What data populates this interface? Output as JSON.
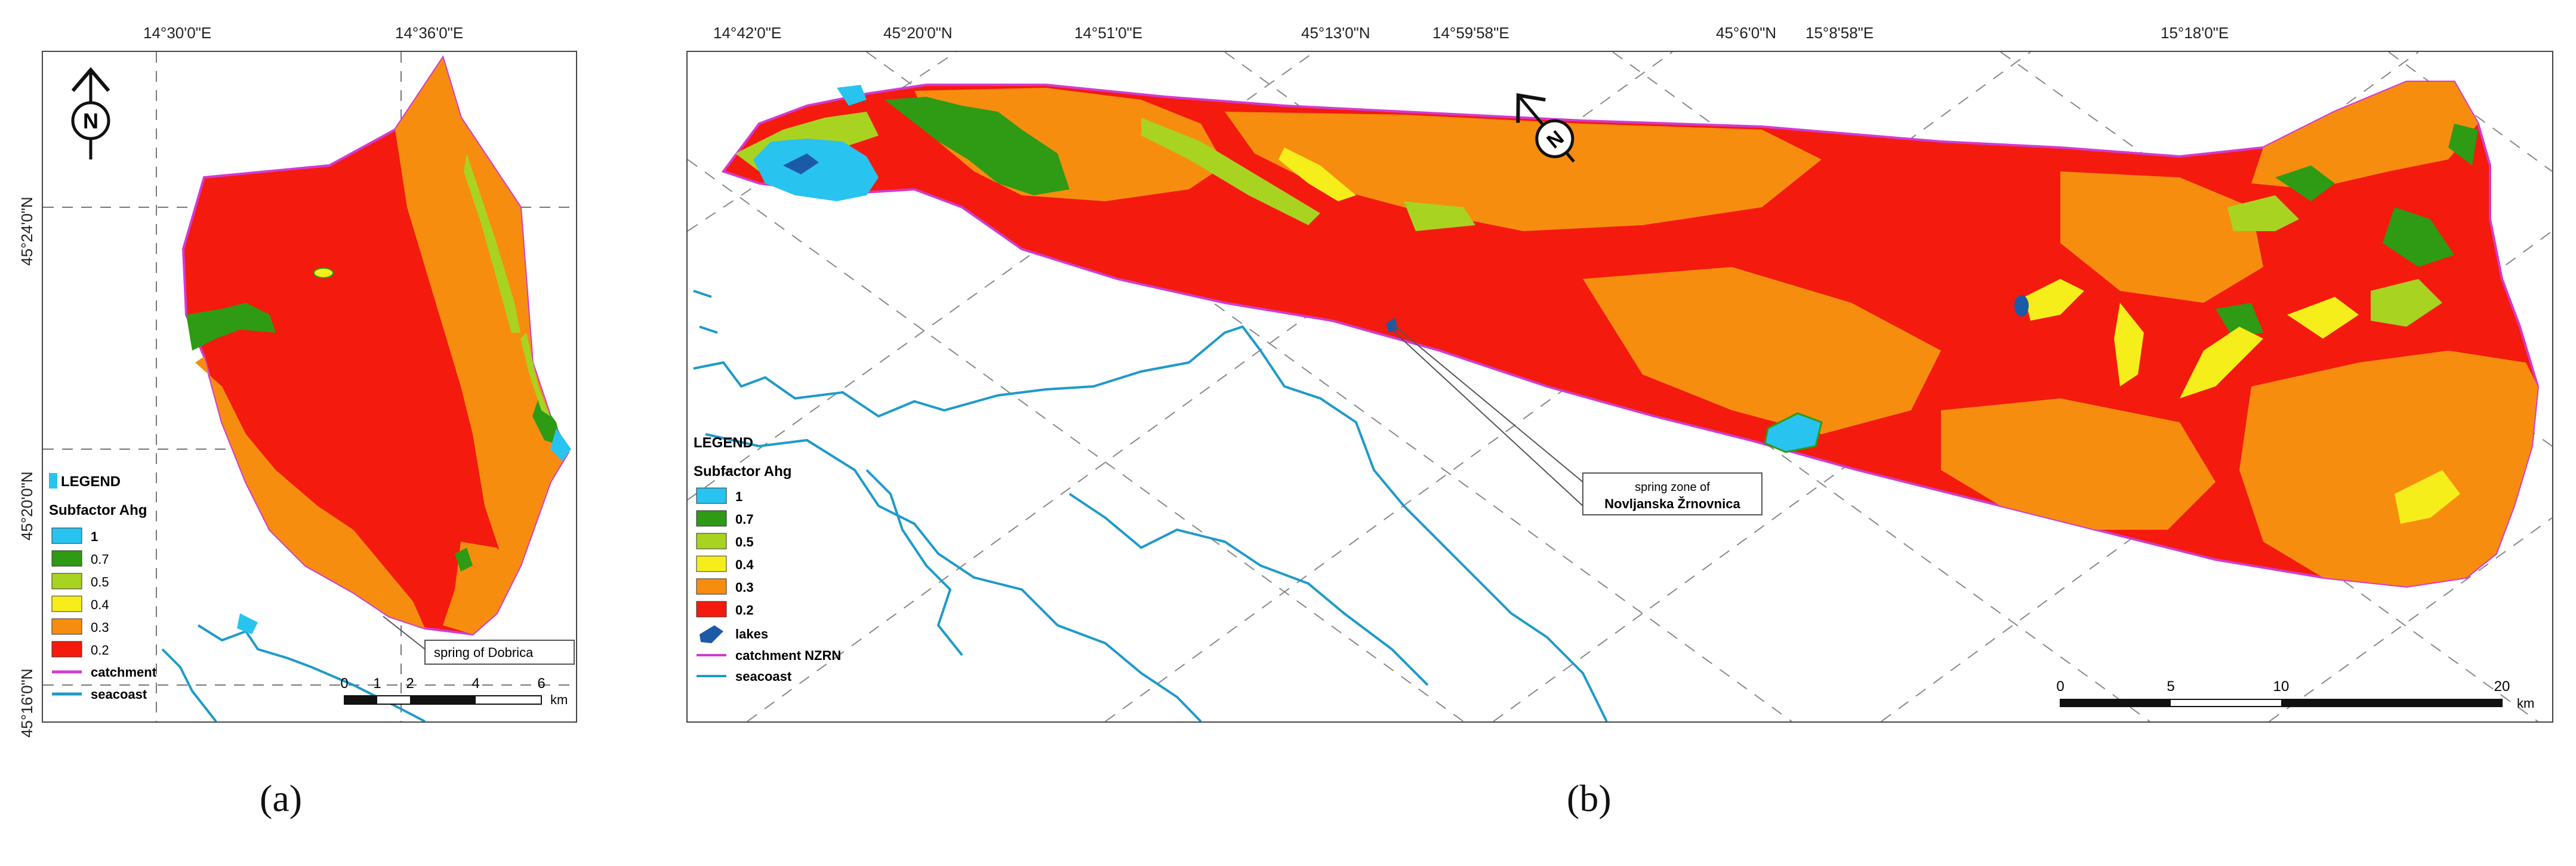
{
  "colors": {
    "c1": "#29c3ef",
    "c07": "#2f9a14",
    "c05": "#a9d321",
    "c04": "#f6ee1a",
    "c03": "#f78d0f",
    "c02": "#f41a0d",
    "catchment": "#d33ad0",
    "seacoast": "#1f9ac9",
    "lakes": "#1c5aa8"
  },
  "panel_a": {
    "caption": "(a)",
    "top_coords": [
      "14°30'0\"E",
      "14°36'0\"E"
    ],
    "left_coords": [
      "45°24'0\"N",
      "45°20'0\"N",
      "45°16'0\"N"
    ],
    "north_arrow": "N",
    "legend": {
      "title": "LEGEND",
      "subtitle": "Subfactor Ahg",
      "items": [
        {
          "label": "1",
          "color_key": "c1"
        },
        {
          "label": "0.7",
          "color_key": "c07"
        },
        {
          "label": "0.5",
          "color_key": "c05"
        },
        {
          "label": "0.4",
          "color_key": "c04"
        },
        {
          "label": "0.3",
          "color_key": "c03"
        },
        {
          "label": "0.2",
          "color_key": "c02"
        }
      ],
      "lines": [
        {
          "label": "catchment",
          "color_key": "catchment"
        },
        {
          "label": "seacoast",
          "color_key": "seacoast"
        }
      ]
    },
    "callout": "spring of Dobrica",
    "scale": {
      "ticks": [
        "0",
        "1",
        "2",
        "4",
        "6"
      ],
      "unit": "km"
    }
  },
  "panel_b": {
    "caption": "(b)",
    "top_coords": [
      "14°42'0\"E",
      "45°20'0\"N",
      "14°51'0\"E",
      "45°13'0\"N",
      "14°59'58\"E",
      "45°6'0\"N",
      "15°8'58\"E",
      "15°18'0\"E"
    ],
    "north_arrow": "N",
    "legend": {
      "title": "LEGEND",
      "subtitle": "Subfactor Ahg",
      "items": [
        {
          "label": "1",
          "color_key": "c1"
        },
        {
          "label": "0.7",
          "color_key": "c07"
        },
        {
          "label": "0.5",
          "color_key": "c05"
        },
        {
          "label": "0.4",
          "color_key": "c04"
        },
        {
          "label": "0.3",
          "color_key": "c03"
        },
        {
          "label": "0.2",
          "color_key": "c02"
        }
      ],
      "lines": [
        {
          "label": "lakes",
          "color_key": "lakes"
        },
        {
          "label": "catchment NZRN",
          "color_key": "catchment"
        },
        {
          "label": "seacoast",
          "color_key": "seacoast"
        }
      ]
    },
    "callout_line1": "spring zone of",
    "callout_line2": "Novljanska Žrnovnica",
    "scale": {
      "ticks": [
        "0",
        "5",
        "10",
        "20"
      ],
      "unit": "km"
    }
  }
}
